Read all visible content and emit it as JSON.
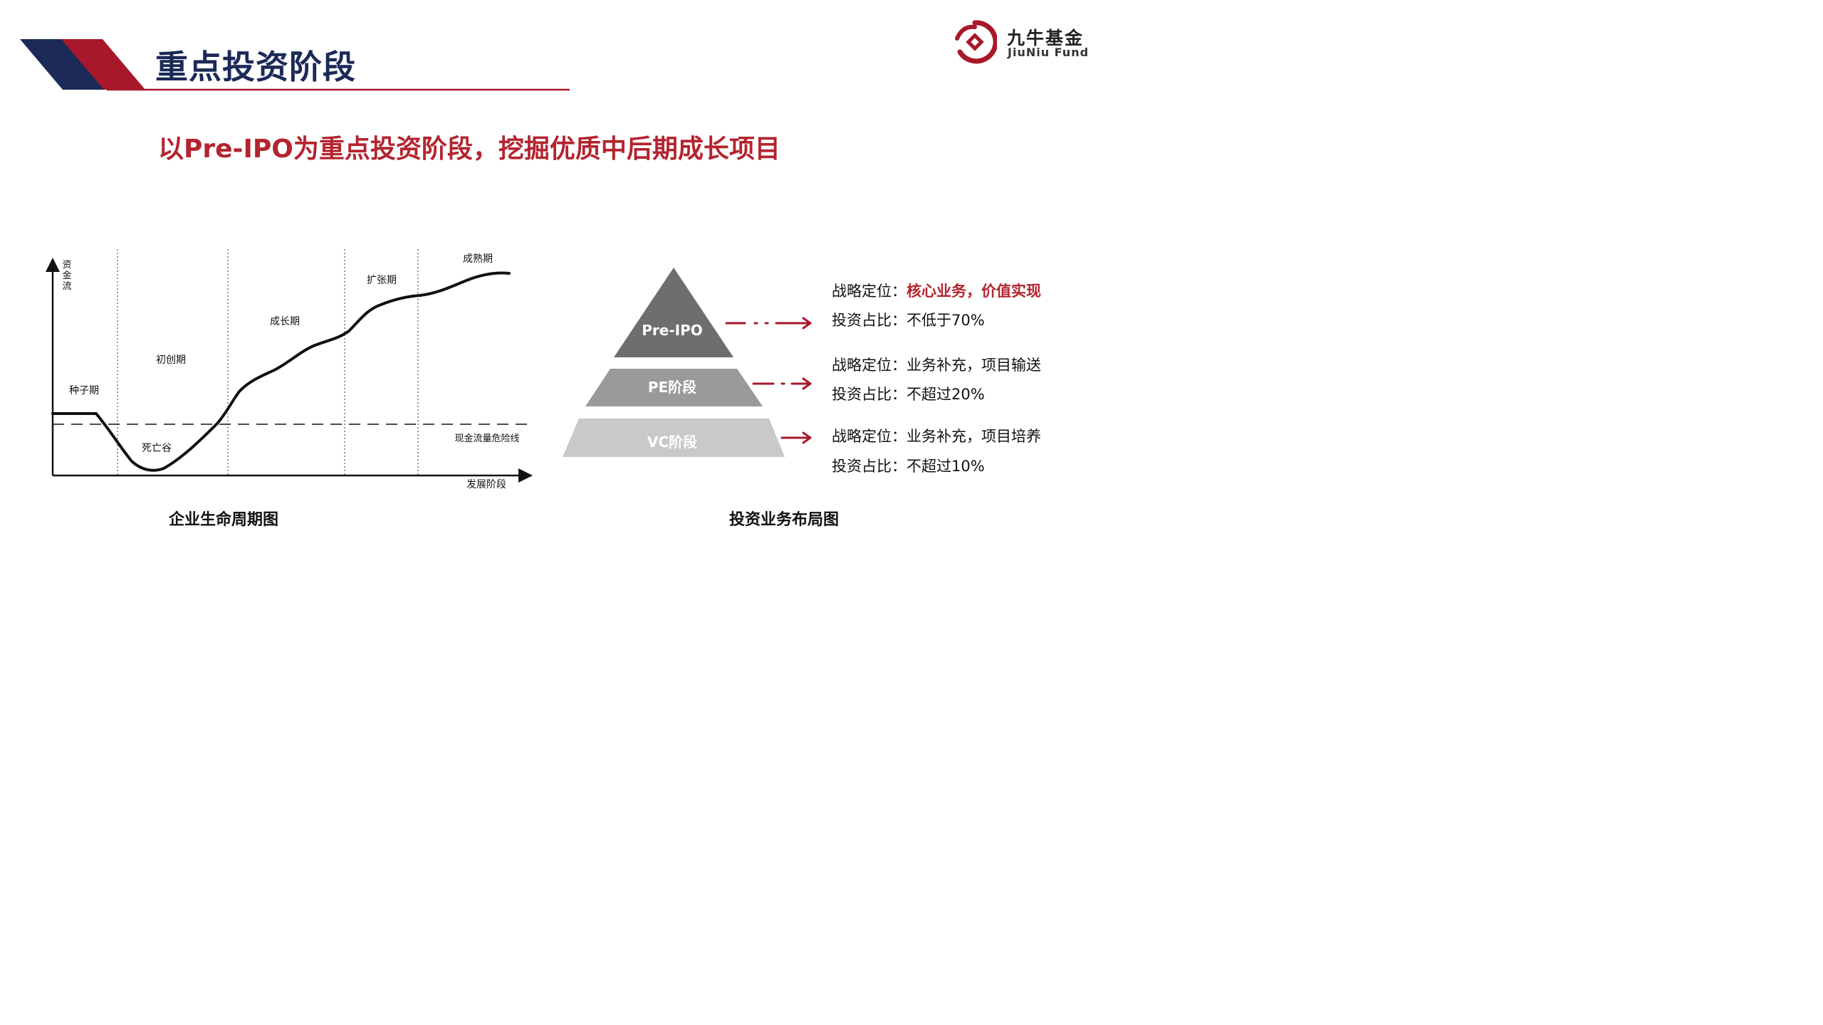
{
  "header": {
    "title": "重点投资阶段"
  },
  "logo": {
    "name_cn": "九牛基金",
    "name_en": "JiuNiu Fund"
  },
  "subtitle": "以Pre-IPO为重点投资阶段，挖掘优质中后期成长项目",
  "lifecycle_chart": {
    "y_axis_label": [
      "资",
      "金",
      "流"
    ],
    "x_axis_label": "发展阶段",
    "stages": [
      "种子期",
      "初创期",
      "成长期",
      "扩张期",
      "成熟期"
    ],
    "valley_label": "死亡谷",
    "danger_line_label": "现金流量危险线",
    "caption": "企业生命周期图"
  },
  "layout_chart": {
    "tiers": [
      "Pre-IPO",
      "PE阶段",
      "VC阶段"
    ],
    "caption": "投资业务布局图",
    "details": [
      {
        "position_label": "战略定位：",
        "position_value": "核心业务，价值实现",
        "ratio_label": "投资占比：",
        "ratio_value": "不低于70%"
      },
      {
        "position_label": "战略定位：",
        "position_value": "业务补充，项目输送",
        "ratio_label": "投资占比：",
        "ratio_value": "不超过20%"
      },
      {
        "position_label": "战略定位：",
        "position_value": "业务补充，项目培养",
        "ratio_label": "投资占比：",
        "ratio_value": "不超过10%"
      }
    ]
  },
  "colors": {
    "navy": "#1b2a57",
    "brand_red": "#a8182a",
    "tier_top": "#6e6e6e",
    "tier_mid": "#9a9a9a",
    "tier_bottom": "#c9c9c9"
  },
  "icons": {
    "logo": "jiuniu-logo-icon",
    "arrow": "arrow-right-icon"
  }
}
